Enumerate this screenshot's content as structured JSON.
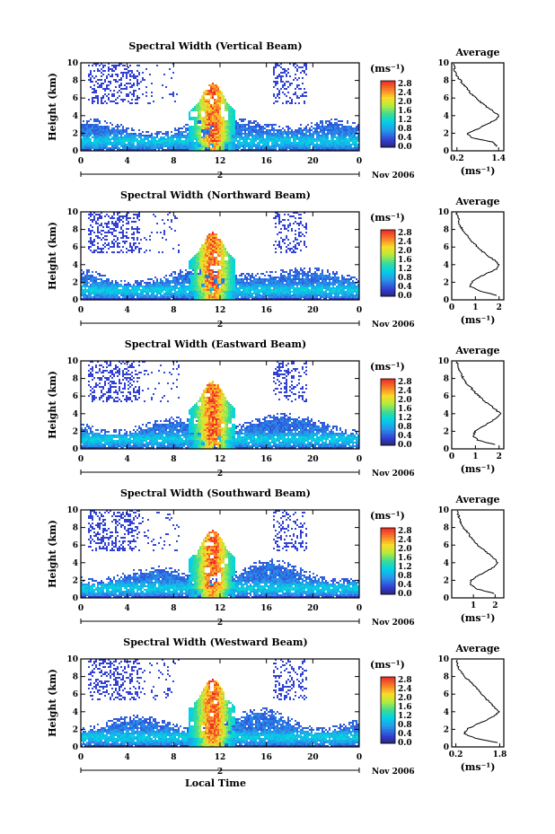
{
  "chart_data": [
    {
      "type": "heatmap",
      "title": "Spectral Width (Vertical Beam)",
      "ylabel": "Height (km)",
      "xticks": [
        "0",
        "4",
        "8",
        "12",
        "16",
        "20",
        "0"
      ],
      "yticks": [
        "0",
        "2",
        "4",
        "6",
        "8",
        "10"
      ],
      "xlim": [
        0,
        24
      ],
      "ylim": [
        0,
        10
      ],
      "colorbar": {
        "unit": "(ms⁻¹)",
        "ticks": [
          "2.8",
          "2.4",
          "2.0",
          "1.6",
          "1.2",
          "0.8",
          "0.4",
          "0.0"
        ],
        "range": [
          0,
          2.8
        ]
      },
      "day_label": "2",
      "date_label": "Nov 2006",
      "profile": {
        "title": "Average",
        "xlabel": "(ms⁻¹)",
        "xticks": [
          "0.2",
          "1.4"
        ],
        "xtick_values": [
          0.2,
          1.4
        ],
        "xlim": [
          0.05,
          1.55
        ],
        "heights": [
          0.5,
          1.0,
          1.5,
          2.0,
          2.5,
          3.0,
          3.5,
          4.0,
          4.5,
          5.0,
          5.5,
          6.0,
          6.5,
          7.0,
          7.5,
          8.0,
          8.5,
          9.0,
          9.5,
          10.0
        ],
        "values": [
          1.35,
          1.25,
          0.6,
          0.5,
          0.8,
          1.05,
          1.3,
          1.4,
          1.25,
          1.05,
          0.9,
          0.75,
          0.6,
          0.5,
          0.4,
          0.3,
          0.2,
          0.15,
          0.12,
          0.1
        ]
      }
    },
    {
      "type": "heatmap",
      "title": "Spectral Width (Northward Beam)",
      "ylabel": "Height (km)",
      "xticks": [
        "0",
        "4",
        "8",
        "12",
        "16",
        "20",
        "0"
      ],
      "yticks": [
        "0",
        "2",
        "4",
        "6",
        "8",
        "10"
      ],
      "xlim": [
        0,
        24
      ],
      "ylim": [
        0,
        10
      ],
      "colorbar": {
        "unit": "(ms⁻¹)",
        "ticks": [
          "2.8",
          "2.4",
          "2.0",
          "1.6",
          "1.2",
          "0.8",
          "0.4",
          "0.0"
        ],
        "range": [
          0,
          2.8
        ]
      },
      "day_label": "2",
      "date_label": "Nov 2006",
      "profile": {
        "title": "Average",
        "xlabel": "(ms⁻¹)",
        "xticks": [
          "0",
          "1",
          "2"
        ],
        "xtick_values": [
          0,
          1,
          2
        ],
        "xlim": [
          0,
          2.2
        ],
        "heights": [
          0.5,
          1.0,
          1.5,
          2.0,
          2.5,
          3.0,
          3.5,
          4.0,
          4.5,
          5.0,
          5.5,
          6.0,
          6.5,
          7.0,
          7.5,
          8.0,
          8.5,
          9.0,
          9.5,
          10.0
        ],
        "values": [
          1.9,
          1.2,
          0.8,
          0.85,
          1.1,
          1.5,
          1.9,
          2.0,
          1.8,
          1.5,
          1.3,
          1.1,
          0.9,
          0.75,
          0.6,
          0.45,
          0.35,
          0.3,
          0.25,
          0.2
        ]
      }
    },
    {
      "type": "heatmap",
      "title": "Spectral Width (Eastward Beam)",
      "ylabel": "Height (km)",
      "xticks": [
        "0",
        "4",
        "8",
        "12",
        "16",
        "20",
        "0"
      ],
      "yticks": [
        "0",
        "2",
        "4",
        "6",
        "8",
        "10"
      ],
      "xlim": [
        0,
        24
      ],
      "ylim": [
        0,
        10
      ],
      "colorbar": {
        "unit": "(ms⁻¹)",
        "ticks": [
          "2.8",
          "2.4",
          "2.0",
          "1.6",
          "1.2",
          "0.8",
          "0.4",
          "0.0"
        ],
        "range": [
          0,
          2.8
        ]
      },
      "day_label": "2",
      "date_label": "Nov 2006",
      "profile": {
        "title": "Average",
        "xlabel": "(ms⁻¹)",
        "xticks": [
          "0",
          "1",
          "2"
        ],
        "xtick_values": [
          0,
          1,
          2
        ],
        "xlim": [
          0,
          2.2
        ],
        "heights": [
          0.5,
          1.0,
          1.5,
          2.0,
          2.5,
          3.0,
          3.5,
          4.0,
          4.5,
          5.0,
          5.5,
          6.0,
          6.5,
          7.0,
          7.5,
          8.0,
          8.5,
          9.0,
          9.5,
          10.0
        ],
        "values": [
          1.8,
          1.1,
          0.9,
          1.0,
          1.3,
          1.6,
          1.9,
          2.05,
          1.85,
          1.6,
          1.35,
          1.15,
          0.95,
          0.8,
          0.6,
          0.5,
          0.4,
          0.3,
          0.25,
          0.2
        ]
      }
    },
    {
      "type": "heatmap",
      "title": "Spectral Width (Southward Beam)",
      "ylabel": "Height (km)",
      "xticks": [
        "0",
        "4",
        "8",
        "12",
        "16",
        "20",
        "0"
      ],
      "yticks": [
        "0",
        "2",
        "4",
        "6",
        "8",
        "10"
      ],
      "xlim": [
        0,
        24
      ],
      "ylim": [
        0,
        10
      ],
      "colorbar": {
        "unit": "(ms⁻¹)",
        "ticks": [
          "2.8",
          "2.4",
          "2.0",
          "1.6",
          "1.2",
          "0.8",
          "0.4",
          "0.0"
        ],
        "range": [
          0,
          2.8
        ]
      },
      "day_label": "2",
      "date_label": "Nov 2006",
      "profile": {
        "title": "Average",
        "xlabel": "(ms⁻¹)",
        "xticks": [
          "1",
          "2"
        ],
        "xtick_values": [
          1,
          2
        ],
        "xlim": [
          0,
          2.4
        ],
        "heights": [
          0.5,
          1.0,
          1.5,
          2.0,
          2.5,
          3.0,
          3.5,
          4.0,
          4.5,
          5.0,
          5.5,
          6.0,
          6.5,
          7.0,
          7.5,
          8.0,
          8.5,
          9.0,
          9.5,
          10.0
        ],
        "values": [
          2.0,
          1.2,
          0.85,
          0.9,
          1.2,
          1.55,
          1.95,
          2.1,
          1.95,
          1.7,
          1.45,
          1.2,
          1.0,
          0.85,
          0.7,
          0.55,
          0.45,
          0.35,
          0.3,
          0.25
        ]
      }
    },
    {
      "type": "heatmap",
      "title": "Spectral Width (Westward Beam)",
      "ylabel": "Height (km)",
      "xlabel": "Local Time",
      "xticks": [
        "0",
        "4",
        "8",
        "12",
        "16",
        "20",
        "0"
      ],
      "yticks": [
        "0",
        "2",
        "4",
        "6",
        "8",
        "10"
      ],
      "xlim": [
        0,
        24
      ],
      "ylim": [
        0,
        10
      ],
      "colorbar": {
        "unit": "(ms⁻¹)",
        "ticks": [
          "2.8",
          "2.4",
          "2.0",
          "1.6",
          "1.2",
          "0.8",
          "0.4",
          "0.0"
        ],
        "range": [
          0,
          2.8
        ]
      },
      "day_label": "2",
      "date_label": "Nov 2006",
      "profile": {
        "title": "Average",
        "xlabel": "(ms⁻¹)",
        "xticks": [
          "0.2",
          "1.8"
        ],
        "xtick_values": [
          0.2,
          1.8
        ],
        "xlim": [
          0.05,
          1.95
        ],
        "heights": [
          0.5,
          1.0,
          1.5,
          2.0,
          2.5,
          3.0,
          3.5,
          4.0,
          4.5,
          5.0,
          5.5,
          6.0,
          6.5,
          7.0,
          7.5,
          8.0,
          8.5,
          9.0,
          9.5,
          10.0
        ],
        "values": [
          1.7,
          0.9,
          0.5,
          0.6,
          0.9,
          1.3,
          1.6,
          1.75,
          1.6,
          1.45,
          1.3,
          1.15,
          1.0,
          0.85,
          0.7,
          0.5,
          0.4,
          0.3,
          0.25,
          0.2
        ]
      }
    }
  ]
}
